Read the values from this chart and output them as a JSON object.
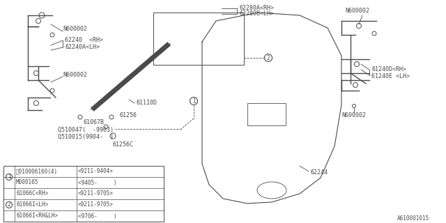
{
  "bg_color": "#ffffff",
  "line_color": "#4a4a4a",
  "diagram_id": "A610001015",
  "table_rows": [
    [
      "1",
      "Ⓑ010006160(4)",
      "<9211-9404>"
    ],
    [
      "1",
      "M000165",
      "<9405-     )"
    ],
    [
      "2",
      "61066C<RH>",
      "<9211-9705>"
    ],
    [
      "2",
      "61066I<LH>",
      "<9211-9705>"
    ],
    [
      "2",
      "61066I<RH&LH>",
      "<9706-     )"
    ]
  ],
  "labels": {
    "N600002_tl": "N600002",
    "62240_rh": "62240  <RH>",
    "62240A_lh": "62240A<LH>",
    "N600002_ml": "N600002",
    "62280A_rh": "62280A<RH>",
    "62280B_lh": "62280B<LH>",
    "61110D": "61110D",
    "61256": "61256",
    "61067B": "61067B",
    "Q510047": "Q510047(  -9903)",
    "Q510015": "Q510015(9904-  )",
    "61256C": "61256C",
    "62244": "62244",
    "N600002_tr": "N600002",
    "61240D_rh": "61240D<RH>",
    "61240E_lh": "61240E <LH>",
    "N600002_br": "N600002"
  }
}
